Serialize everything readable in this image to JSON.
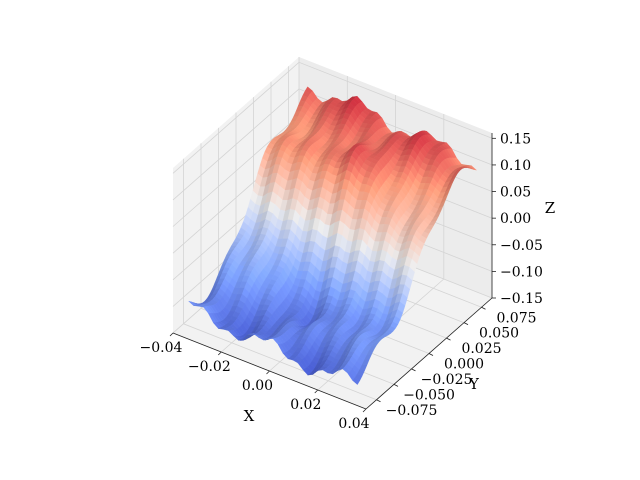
{
  "chart_data": {
    "type": "surface3d",
    "title": "",
    "xlabel": "X",
    "ylabel": "Y",
    "zlabel": "Z",
    "xlim": [
      -0.04,
      0.04
    ],
    "ylim": [
      -0.09,
      0.09
    ],
    "zlim": [
      -0.15,
      0.16
    ],
    "x_ticks": [
      -0.04,
      -0.02,
      0.0,
      0.02,
      0.04
    ],
    "x_tick_labels": [
      "−0.04",
      "−0.02",
      "0.00",
      "0.02",
      "0.04"
    ],
    "y_ticks": [
      -0.075,
      -0.05,
      -0.025,
      0.0,
      0.025,
      0.05,
      0.075
    ],
    "y_tick_labels": [
      "−0.075",
      "−0.050",
      "−0.025",
      "0.000",
      "0.025",
      "0.050",
      "0.075"
    ],
    "z_ticks": [
      -0.15,
      -0.1,
      -0.05,
      0.0,
      0.05,
      0.1,
      0.15
    ],
    "z_tick_labels": [
      "−0.15",
      "−0.10",
      "−0.05",
      "0.00",
      "0.05",
      "0.10",
      "0.15"
    ],
    "grid": true,
    "colormap": "coolwarm",
    "surface": {
      "x_range": [
        -0.035,
        0.035
      ],
      "y_range": [
        -0.085,
        0.085
      ],
      "z_range": [
        -0.15,
        0.16
      ],
      "peak": {
        "x": 0.0,
        "y": 0.0,
        "z": 0.16
      },
      "trough": {
        "x": 0.0,
        "y": 0.0,
        "z": -0.15
      }
    }
  }
}
